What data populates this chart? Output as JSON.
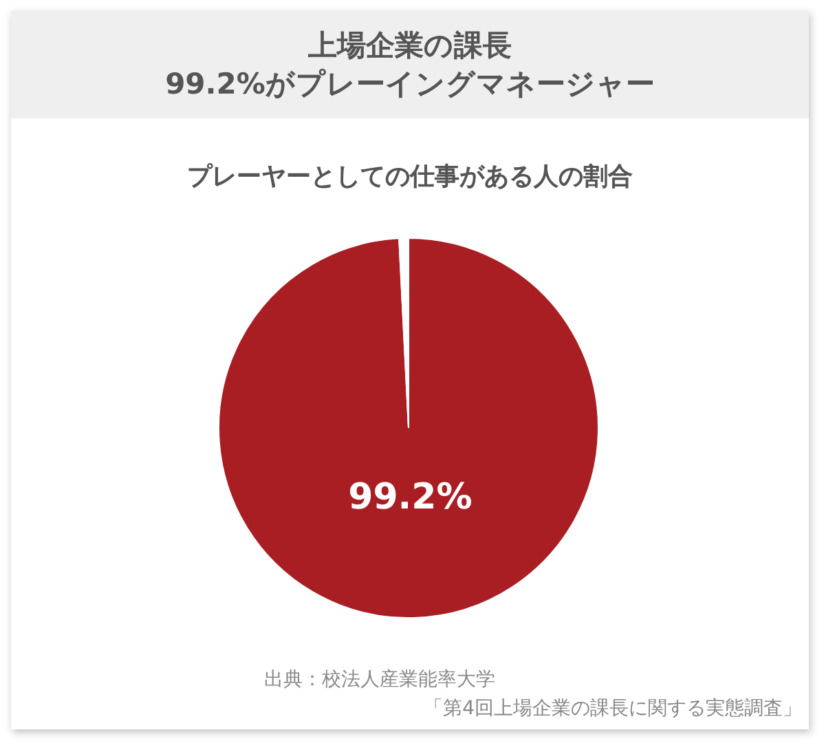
{
  "chart_data": {
    "type": "pie",
    "title": "上場企業の課長\n99.2%がプレーイングマネージャー",
    "subtitle": "プレーヤーとしての仕事がある人の割合",
    "categories": [
      null,
      null
    ],
    "values": [
      99.2,
      0.8
    ],
    "colors": [
      "#a91e23",
      "#ffffff"
    ],
    "value_labels": [
      "99.2%",
      null
    ],
    "annotations": [
      "出典：校法人産業能率大学",
      "「第4回上場企業の課長に関する実態調査」"
    ]
  }
}
